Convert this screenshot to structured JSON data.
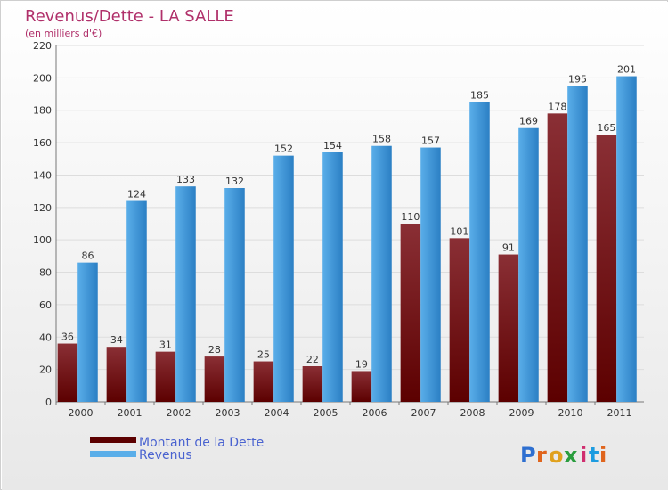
{
  "colors": {
    "debt_dark": "#5c0000",
    "debt_light": "#8a2f35",
    "rev_dark": "#2b7fc4",
    "rev_light": "#5aaee9",
    "title": "#b0306a",
    "legend_text": "#4a63d0",
    "grid": "#dddddd",
    "axis_text": "#333333",
    "bg_top": "#ffffff",
    "bg_bottom": "#e8e8e8"
  },
  "brand": {
    "letters": [
      "P",
      "r",
      "o",
      "x",
      "i",
      "t",
      "i"
    ],
    "colors": [
      "#2e6fd0",
      "#e0651d",
      "#e0a11d",
      "#2a9d3e",
      "#d02e6f",
      "#1d9ce0",
      "#e0651d"
    ]
  },
  "chart_data": {
    "type": "bar",
    "title": "Revenus/Dette - LA SALLE",
    "subtitle": "(en milliers d'€)",
    "categories": [
      "2000",
      "2001",
      "2002",
      "2003",
      "2004",
      "2005",
      "2006",
      "2007",
      "2008",
      "2009",
      "2010",
      "2011"
    ],
    "series": [
      {
        "name": "Montant de la Dette",
        "values": [
          36,
          34,
          31,
          28,
          25,
          22,
          19,
          110,
          101,
          91,
          178,
          165
        ]
      },
      {
        "name": "Revenus",
        "values": [
          86,
          124,
          133,
          132,
          152,
          154,
          158,
          157,
          185,
          169,
          195,
          201
        ]
      }
    ],
    "ylim": [
      0,
      220
    ],
    "yticks": [
      0,
      20,
      40,
      60,
      80,
      100,
      120,
      140,
      160,
      180,
      200,
      220
    ],
    "grid": true,
    "legend": "bottom-left"
  }
}
